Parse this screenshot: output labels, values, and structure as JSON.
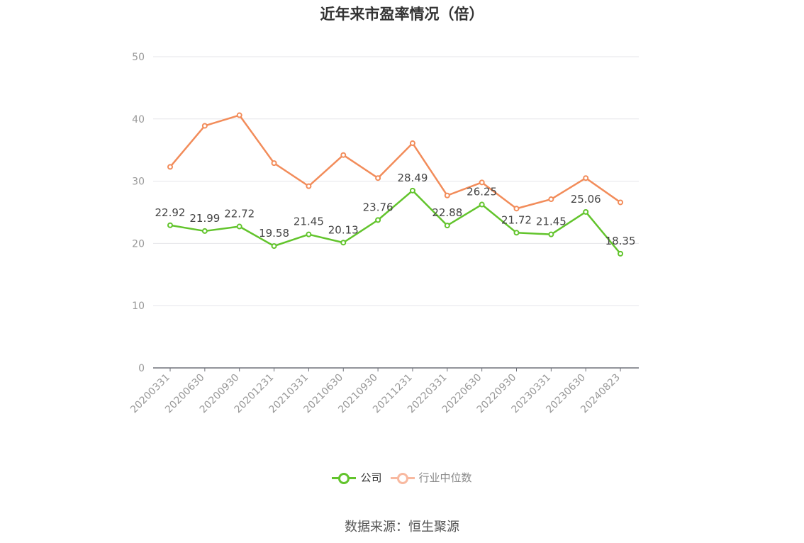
{
  "chart_data": {
    "type": "line",
    "title": "近年来市盈率情况（倍）",
    "categories": [
      "20200331",
      "20200630",
      "20200930",
      "20201231",
      "20210331",
      "20210630",
      "20210930",
      "20211231",
      "20220331",
      "20220630",
      "20220930",
      "20230331",
      "20230630",
      "20240823"
    ],
    "series": [
      {
        "name": "公司",
        "color": "#62c42c",
        "show_labels": true,
        "values": [
          22.92,
          21.99,
          22.72,
          19.58,
          21.45,
          20.13,
          23.76,
          28.49,
          22.88,
          26.25,
          21.72,
          21.45,
          25.06,
          18.35
        ]
      },
      {
        "name": "行业中位数",
        "color": "#f28c5a",
        "legend_color": "#f8b9a0",
        "show_labels": false,
        "values": [
          32.3,
          38.9,
          40.6,
          32.9,
          29.2,
          34.2,
          30.5,
          36.1,
          27.7,
          29.8,
          25.6,
          27.1,
          30.5,
          26.6
        ]
      }
    ],
    "ylim": [
      0,
      50
    ],
    "yticks": [
      0,
      10,
      20,
      30,
      40,
      50
    ],
    "grid": true,
    "legend_position": "bottom"
  },
  "source": "数据来源：恒生聚源"
}
